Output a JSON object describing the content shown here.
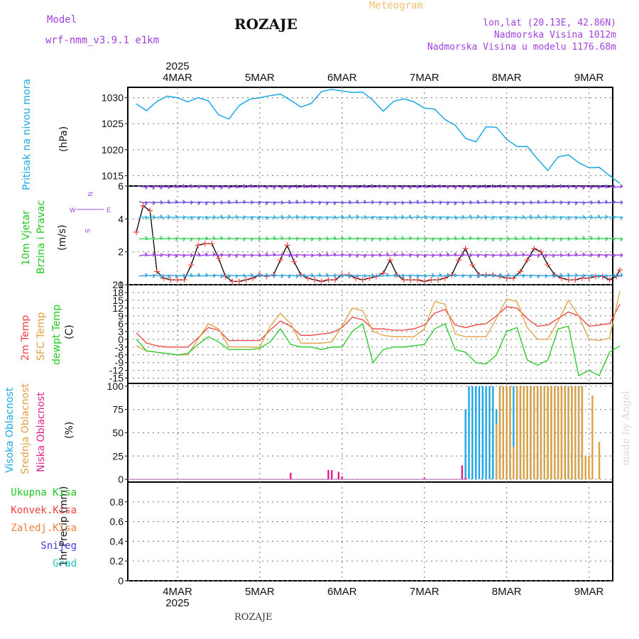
{
  "header": {
    "model_label": "Model",
    "model_name": "wrf-nmm_v3.9.1 e1km",
    "title": "ROZAJE",
    "meteogram": "Meteogram",
    "location": "lon,lat (20.13E, 42.86N)",
    "elevation": "Nadmorska Visina 1012m",
    "model_elevation": "Nadmorska Visina u modelu 1176.68m",
    "bottom_title": "ROZAJE",
    "watermark": "made by Angel"
  },
  "colors": {
    "pressure": "#1aa7e8",
    "temp2m": "#f04040",
    "sfc": "#e0a040",
    "dewpt": "#20c820",
    "high_cloud": "#1aa7e8",
    "mid_cloud": "#e0a040",
    "low_cloud": "#e0208a",
    "title_purple": "#a040e0",
    "meteogram_orange": "#f0c070"
  },
  "panel_labels": {
    "pressure": [
      "Pritisak na nivou mora",
      "(hPa)"
    ],
    "wind": [
      "10m Vjetar",
      "Brzina i Pravac",
      "(m/s)"
    ],
    "compass": {
      "n": "N",
      "s": "S",
      "w": "W",
      "e": "E"
    },
    "temp": [
      "2m Temp",
      "SFC Temp",
      "dewpt Temp",
      "(C)"
    ],
    "cloud": [
      "Visoka Oblacnost",
      "Srednja Oblacnost",
      "Niska Oblacnost",
      "(%)"
    ],
    "precip_legend": [
      "Ukupna Kisa",
      "Konvek.Kisa",
      "Zaledj.Kisa",
      "Snijeg",
      "Grad"
    ],
    "precip_unit": "1hr Precip (mm)"
  },
  "chart_data": {
    "type": "line",
    "top_year": "2025",
    "bottom_year": "2025",
    "date_labels": [
      "4MAR",
      "5MAR",
      "6MAR",
      "7MAR",
      "8MAR",
      "9MAR"
    ],
    "panels": [
      {
        "name": "pressure",
        "ylabel": "(hPa)",
        "ylim": [
          1013,
          1032
        ],
        "yticks": [
          1015,
          1020,
          1025,
          1030
        ],
        "series": [
          {
            "name": "Pritisak na nivou mora",
            "x": [
              0,
              3,
              6,
              9,
              12,
              15,
              18,
              21,
              24,
              27,
              30,
              33,
              36,
              39,
              42,
              45,
              48,
              51,
              54,
              57,
              60,
              63,
              66,
              69,
              72,
              75,
              78,
              81,
              84,
              87,
              90,
              93,
              96,
              99,
              102,
              105,
              108,
              111,
              114,
              117,
              120,
              123,
              126,
              129,
              132,
              135,
              138,
              141
            ],
            "y": [
              1028.8,
              1027.5,
              1029.3,
              1030.3,
              1030.0,
              1029.2,
              1030.0,
              1029.4,
              1026.7,
              1025.9,
              1028.5,
              1029.7,
              1030.0,
              1030.4,
              1030.7,
              1029.5,
              1028.2,
              1028.9,
              1031.2,
              1031.6,
              1031.3,
              1031.0,
              1031.1,
              1029.5,
              1027.4,
              1029.3,
              1029.8,
              1029.2,
              1028.0,
              1027.8,
              1025.8,
              1024.7,
              1022.2,
              1021.5,
              1024.4,
              1024.3,
              1022.0,
              1020.6,
              1020.6,
              1018.2,
              1016.0,
              1018.6,
              1019.0,
              1017.5,
              1016.5,
              1016.6,
              1015.0,
              1013.5
            ]
          }
        ]
      },
      {
        "name": "wind",
        "ylabel": "(m/s)",
        "ylim": [
          0,
          6
        ],
        "yticks": [
          0,
          2,
          4,
          6
        ],
        "series": [
          {
            "name": "10m wind speed",
            "x": [
              0,
              2,
              4,
              6,
              8,
              10,
              12,
              14,
              16,
              18,
              20,
              22,
              24,
              26,
              28,
              30,
              32,
              34,
              36,
              38,
              40,
              42,
              44,
              46,
              48,
              50,
              52,
              54,
              56,
              58,
              60,
              62,
              64,
              66,
              68,
              70,
              72,
              74,
              76,
              78,
              80,
              82,
              84,
              86,
              88,
              90,
              92,
              94,
              96,
              98,
              100,
              102,
              104,
              106,
              108,
              110,
              112,
              114,
              116,
              118,
              120,
              122,
              124,
              126,
              128,
              130,
              132,
              134,
              136,
              138,
              140,
              141
            ],
            "y": [
              3.2,
              4.8,
              4.5,
              0.8,
              0.4,
              0.3,
              0.3,
              0.3,
              1.2,
              2.4,
              2.5,
              2.5,
              1.6,
              0.5,
              0.2,
              0.2,
              0.3,
              0.4,
              0.6,
              0.5,
              0.6,
              1.5,
              2.4,
              1.4,
              0.6,
              0.4,
              0.3,
              0.2,
              0.3,
              0.3,
              0.6,
              0.6,
              0.4,
              0.3,
              0.4,
              0.5,
              0.7,
              1.5,
              0.6,
              0.3,
              0.3,
              0.3,
              0.2,
              0.3,
              0.3,
              0.4,
              0.6,
              1.5,
              2.2,
              1.2,
              0.6,
              0.6,
              0.6,
              0.5,
              0.4,
              0.4,
              0.8,
              1.5,
              2.2,
              2.0,
              1.2,
              0.6,
              0.4,
              0.3,
              0.3,
              0.4,
              0.4,
              0.5,
              0.5,
              0.3,
              0.5,
              0.9
            ]
          }
        ]
      },
      {
        "name": "temperature",
        "ylabel": "(C)",
        "ylim": [
          -17,
          21
        ],
        "yticks": [
          -15,
          -12,
          -9,
          -6,
          -3,
          0,
          3,
          6,
          9,
          12,
          15,
          18,
          21
        ],
        "series": [
          {
            "name": "2m Temp",
            "x": [
              0,
              3,
              6,
              9,
              12,
              15,
              18,
              21,
              24,
              27,
              30,
              33,
              36,
              39,
              42,
              45,
              48,
              51,
              54,
              57,
              60,
              63,
              66,
              69,
              72,
              75,
              78,
              81,
              84,
              87,
              90,
              93,
              96,
              99,
              102,
              105,
              108,
              111,
              114,
              117,
              120,
              123,
              126,
              129,
              132,
              135,
              138,
              141
            ],
            "y": [
              2.5,
              -1.5,
              -2.5,
              -3.0,
              -3.0,
              -3.0,
              0.5,
              4.5,
              3.5,
              -0.5,
              -0.5,
              -0.5,
              -0.5,
              3.5,
              7.0,
              5.0,
              1.5,
              1.5,
              2.0,
              2.5,
              4.5,
              8.5,
              7.5,
              4.0,
              4.0,
              3.5,
              3.5,
              4.0,
              5.5,
              10.0,
              11.5,
              5.5,
              4.5,
              5.5,
              6.0,
              9.0,
              12.5,
              12.0,
              8.0,
              5.0,
              5.5,
              8.0,
              10.5,
              9.0,
              5.0,
              5.5,
              6.0,
              13.5
            ]
          },
          {
            "name": "SFC Temp",
            "x": [
              0,
              3,
              6,
              9,
              12,
              15,
              18,
              21,
              24,
              27,
              30,
              33,
              36,
              39,
              42,
              45,
              48,
              51,
              54,
              57,
              60,
              63,
              66,
              69,
              72,
              75,
              78,
              81,
              84,
              87,
              90,
              93,
              96,
              99,
              102,
              105,
              108,
              111,
              114,
              117,
              120,
              123,
              126,
              129,
              132,
              135,
              138,
              141
            ],
            "y": [
              -2.5,
              -4.5,
              -5.0,
              -5.5,
              -6.0,
              -6.0,
              0.0,
              6.0,
              4.0,
              -3.0,
              -3.0,
              -3.0,
              -3.0,
              5.0,
              10.0,
              6.0,
              -1.5,
              -1.5,
              -1.5,
              -1.0,
              5.0,
              12.0,
              11.0,
              3.0,
              1.5,
              1.0,
              1.0,
              1.0,
              4.0,
              14.5,
              13.5,
              2.0,
              1.0,
              1.0,
              1.0,
              8.0,
              15.5,
              14.5,
              4.5,
              0.0,
              0.0,
              7.0,
              15.0,
              9.0,
              0.0,
              -0.5,
              0.5,
              18.5
            ]
          },
          {
            "name": "dewpt Temp",
            "x": [
              0,
              3,
              6,
              9,
              12,
              15,
              18,
              21,
              24,
              27,
              30,
              33,
              36,
              39,
              42,
              45,
              48,
              51,
              54,
              57,
              60,
              63,
              66,
              69,
              72,
              75,
              78,
              81,
              84,
              87,
              90,
              93,
              96,
              99,
              102,
              105,
              108,
              111,
              114,
              117,
              120,
              123,
              126,
              129,
              132,
              135,
              138,
              141
            ],
            "y": [
              0.0,
              -4.5,
              -5.0,
              -5.5,
              -6.0,
              -5.5,
              -2.0,
              1.0,
              -1.0,
              -4.0,
              -4.0,
              -4.0,
              -3.5,
              -1.0,
              4.0,
              -2.0,
              -3.0,
              -3.0,
              -4.0,
              -3.0,
              -3.0,
              3.0,
              6.0,
              -9.0,
              -4.0,
              -3.0,
              -3.0,
              -2.5,
              -2.0,
              4.0,
              6.0,
              -4.0,
              -5.0,
              -9.0,
              -9.5,
              -6.0,
              3.0,
              4.5,
              -8.0,
              -10.0,
              -8.0,
              4.0,
              5.0,
              -14.0,
              -12.0,
              -14.0,
              -5.0,
              -2.5
            ]
          }
        ]
      },
      {
        "name": "cloud",
        "ylabel": "(%)",
        "ylim": [
          -3,
          103
        ],
        "yticks": [
          0,
          25,
          50,
          75,
          100
        ],
        "series": [
          {
            "name": "Visoka Oblacnost",
            "x": [
              96,
              97,
              98,
              99,
              100,
              101,
              102,
              103,
              104,
              105,
              106,
              107,
              108,
              109,
              110,
              111,
              112,
              113,
              114,
              115,
              116,
              117,
              118,
              119,
              120,
              121,
              122,
              123,
              124,
              125,
              126,
              127,
              128,
              129,
              130
            ],
            "y": [
              75,
              100,
              100,
              100,
              100,
              100,
              100,
              100,
              100,
              75,
              100,
              100,
              100,
              100,
              100,
              100,
              95,
              100,
              100,
              100,
              100,
              100,
              100,
              100,
              100,
              100,
              100,
              100,
              100,
              100,
              100,
              100,
              100,
              100,
              100
            ]
          },
          {
            "name": "Srednja Oblacnost",
            "x": [
              105,
              106,
              107,
              108,
              109,
              110,
              111,
              112,
              113,
              114,
              115,
              116,
              117,
              118,
              119,
              120,
              121,
              122,
              123,
              124,
              125,
              126,
              127,
              128,
              129,
              130,
              131,
              132,
              133,
              135
            ],
            "y": [
              60,
              100,
              100,
              100,
              100,
              35,
              100,
              100,
              100,
              100,
              100,
              100,
              100,
              100,
              100,
              100,
              100,
              100,
              100,
              100,
              100,
              100,
              100,
              100,
              100,
              100,
              25,
              25,
              90,
              40
            ]
          },
          {
            "name": "Niska Oblacnost",
            "x": [
              45,
              56,
              57,
              59,
              60,
              84,
              95,
              96
            ],
            "y": [
              7,
              10,
              10,
              8,
              3,
              2,
              15,
              2
            ]
          }
        ]
      },
      {
        "name": "precip",
        "ylabel": "1hr Precip (mm)",
        "ylim": [
          0,
          1
        ],
        "yticks": [
          0,
          0.2,
          0.4,
          0.6,
          0.8
        ],
        "series": []
      }
    ]
  }
}
